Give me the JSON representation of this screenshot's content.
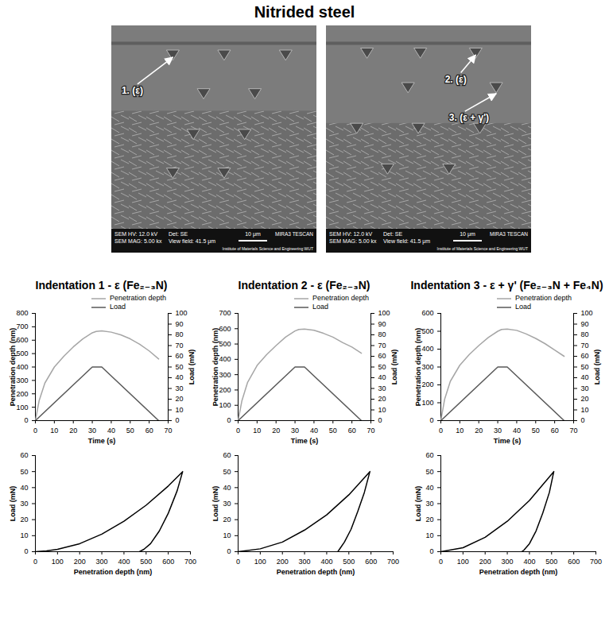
{
  "title": "Nitrided steel",
  "images": [
    {
      "labels": [
        "1. (ε)"
      ],
      "info": [
        "SEM HV: 12.0 kV",
        "Det: SE",
        "SEM MAG: 5.00 kx",
        "View field: 41.5 μm",
        "10 μm",
        "MIRA3 TESCAN",
        "Institute of Materials Science and Engineering WUT"
      ]
    },
    {
      "labels": [
        "2. (ε)",
        "3. (ε + γ')"
      ],
      "info": [
        "SEM HV: 12.0 kV",
        "Det: SE",
        "SEM MAG: 5.00 kx",
        "View field: 41.5 μm",
        "10 μm",
        "MIRA3 TESCAN",
        "Institute of Materials Science and Engineering WUT"
      ]
    }
  ],
  "chart_data": [
    {
      "type": "line",
      "title": "Indentation 1 - ε (Fe₂₋₃N)",
      "xlabel": "Time (s)",
      "ylabel": "Penetration depth (nm)",
      "y2label": "Load (mN)",
      "xlim": [
        0,
        70
      ],
      "xticks": [
        0,
        10,
        20,
        30,
        40,
        50,
        60,
        70
      ],
      "ylim": [
        0,
        800
      ],
      "yticks": [
        0,
        100,
        200,
        300,
        400,
        500,
        600,
        700,
        800
      ],
      "y2lim": [
        0,
        100
      ],
      "y2ticks": [
        0,
        10,
        20,
        30,
        40,
        50,
        60,
        70,
        80,
        90,
        100
      ],
      "legend": "top right",
      "series": [
        {
          "name": "Penetration depth",
          "color": "#a6a6a6",
          "x": [
            0,
            2,
            5,
            10,
            15,
            20,
            25,
            30,
            32,
            35,
            40,
            45,
            50,
            55,
            60,
            65
          ],
          "values": [
            0,
            150,
            280,
            400,
            480,
            550,
            610,
            655,
            665,
            670,
            660,
            640,
            610,
            570,
            520,
            460
          ]
        },
        {
          "name": "Load",
          "color": "#595959",
          "axis": "y2",
          "x": [
            0,
            30,
            35,
            65
          ],
          "values": [
            0,
            50,
            50,
            0
          ]
        }
      ]
    },
    {
      "type": "line",
      "title": "Indentation 2 - ε (Fe₂₋₃N)",
      "xlabel": "Time (s)",
      "ylabel": "Penetration depth (nm)",
      "y2label": "Load (mN)",
      "xlim": [
        0,
        70
      ],
      "xticks": [
        0,
        10,
        20,
        30,
        40,
        50,
        60,
        70
      ],
      "ylim": [
        0,
        700
      ],
      "yticks": [
        0,
        100,
        200,
        300,
        400,
        500,
        600,
        700
      ],
      "y2lim": [
        0,
        100
      ],
      "y2ticks": [
        0,
        10,
        20,
        30,
        40,
        50,
        60,
        70,
        80,
        90,
        100
      ],
      "legend": "top right",
      "series": [
        {
          "name": "Penetration depth",
          "color": "#a6a6a6",
          "x": [
            0,
            2,
            5,
            10,
            15,
            20,
            25,
            30,
            32,
            35,
            40,
            45,
            50,
            55,
            60,
            65
          ],
          "values": [
            0,
            130,
            250,
            360,
            430,
            490,
            545,
            585,
            595,
            598,
            590,
            570,
            545,
            510,
            480,
            440
          ]
        },
        {
          "name": "Load",
          "color": "#595959",
          "axis": "y2",
          "x": [
            0,
            30,
            35,
            65
          ],
          "values": [
            0,
            50,
            50,
            0
          ]
        }
      ]
    },
    {
      "type": "line",
      "title": "Indentation 3 - ε + γ' (Fe₂₋₃N + Fe₄N)",
      "xlabel": "Time (s)",
      "ylabel": "Penetration depth (nm)",
      "y2label": "Load (mN)",
      "xlim": [
        0,
        70
      ],
      "xticks": [
        0,
        10,
        20,
        30,
        40,
        50,
        60,
        70
      ],
      "ylim": [
        0,
        600
      ],
      "yticks": [
        0,
        100,
        200,
        300,
        400,
        500,
        600
      ],
      "y2lim": [
        0,
        100
      ],
      "y2ticks": [
        0,
        10,
        20,
        30,
        40,
        50,
        60,
        70,
        80,
        90,
        100
      ],
      "legend": "top right",
      "series": [
        {
          "name": "Penetration depth",
          "color": "#a6a6a6",
          "x": [
            0,
            2,
            5,
            10,
            15,
            20,
            25,
            30,
            32,
            35,
            40,
            45,
            50,
            55,
            60,
            65
          ],
          "values": [
            0,
            120,
            220,
            310,
            370,
            420,
            465,
            500,
            510,
            512,
            505,
            485,
            460,
            430,
            395,
            360
          ]
        },
        {
          "name": "Load",
          "color": "#595959",
          "axis": "y2",
          "x": [
            0,
            30,
            35,
            65
          ],
          "values": [
            0,
            50,
            50,
            0
          ]
        }
      ]
    },
    {
      "type": "line",
      "xlabel": "Penetration depth (nm)",
      "ylabel": "Load (mN)",
      "xlim": [
        0,
        700
      ],
      "xticks": [
        0,
        100,
        200,
        300,
        400,
        500,
        600,
        700
      ],
      "ylim": [
        0,
        60
      ],
      "yticks": [
        0,
        10,
        20,
        30,
        40,
        50,
        60
      ],
      "series": [
        {
          "color": "#000000",
          "x": [
            0,
            50,
            100,
            200,
            300,
            400,
            500,
            600,
            665,
            640,
            600,
            560,
            520,
            490,
            470
          ],
          "values": [
            0,
            0.5,
            1.5,
            5,
            11,
            19,
            29,
            41,
            50,
            38,
            24,
            13,
            5,
            1.5,
            0
          ]
        }
      ]
    },
    {
      "type": "line",
      "xlabel": "Penetration depth (nm)",
      "ylabel": "Load (mN)",
      "xlim": [
        0,
        700
      ],
      "xticks": [
        0,
        100,
        200,
        300,
        400,
        500,
        600,
        700
      ],
      "ylim": [
        0,
        60
      ],
      "yticks": [
        0,
        10,
        20,
        30,
        40,
        50,
        60
      ],
      "series": [
        {
          "color": "#000000",
          "x": [
            0,
            100,
            200,
            300,
            400,
            500,
            595,
            570,
            540,
            510,
            480,
            460,
            450
          ],
          "values": [
            0,
            1.8,
            6,
            13.5,
            23,
            35.5,
            50,
            37,
            25,
            14,
            6,
            2,
            0
          ]
        }
      ]
    },
    {
      "type": "line",
      "xlabel": "Penetration depth (nm)",
      "ylabel": "Load (mN)",
      "xlim": [
        0,
        700
      ],
      "xticks": [
        0,
        100,
        200,
        300,
        400,
        500,
        600,
        700
      ],
      "ylim": [
        0,
        60
      ],
      "yticks": [
        0,
        10,
        20,
        30,
        40,
        50,
        60
      ],
      "series": [
        {
          "color": "#000000",
          "x": [
            0,
            100,
            200,
            300,
            400,
            510,
            490,
            460,
            430,
            400,
            375,
            365
          ],
          "values": [
            0,
            2.5,
            9,
            19,
            32,
            50,
            37,
            24,
            13,
            5,
            1,
            0
          ]
        }
      ]
    }
  ]
}
